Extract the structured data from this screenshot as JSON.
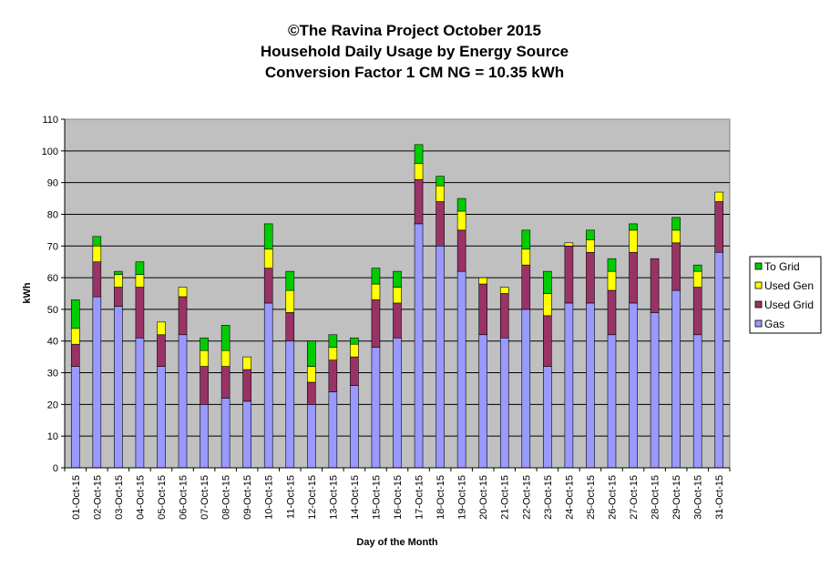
{
  "chart_data": {
    "type": "bar",
    "stacked": true,
    "title_lines": [
      "©The Ravina Project October 2015",
      "Household Daily Usage by Energy Source",
      "Conversion Factor 1 CM NG = 10.35 kWh"
    ],
    "xlabel": "Day of the Month",
    "ylabel": "kWh",
    "ylim": [
      0,
      110
    ],
    "yticks": [
      0,
      10,
      20,
      30,
      40,
      50,
      60,
      70,
      80,
      90,
      100,
      110
    ],
    "grid": "horizontal",
    "legend_position": "right",
    "categories": [
      "01-Oct-15",
      "02-Oct-15",
      "03-Oct-15",
      "04-Oct-15",
      "05-Oct-15",
      "06-Oct-15",
      "07-Oct-15",
      "08-Oct-15",
      "09-Oct-15",
      "10-Oct-15",
      "11-Oct-15",
      "12-Oct-15",
      "13-Oct-15",
      "14-Oct-15",
      "15-Oct-15",
      "16-Oct-15",
      "17-Oct-15",
      "18-Oct-15",
      "19-Oct-15",
      "20-Oct-15",
      "21-Oct-15",
      "22-Oct-15",
      "23-Oct-15",
      "24-Oct-15",
      "25-Oct-15",
      "26-Oct-15",
      "27-Oct-15",
      "28-Oct-15",
      "29-Oct-15",
      "30-Oct-15",
      "31-Oct-15"
    ],
    "series": [
      {
        "name": "Gas",
        "color": "#9999ff",
        "values": [
          32,
          54,
          51,
          41,
          32,
          42,
          20,
          22,
          21,
          52,
          40,
          20,
          24,
          26,
          38,
          41,
          77,
          70,
          62,
          42,
          41,
          50,
          32,
          52,
          52,
          42,
          52,
          49,
          56,
          42,
          68
        ]
      },
      {
        "name": "Used Grid",
        "color": "#993366",
        "values": [
          7,
          11,
          6,
          16,
          10,
          12,
          12,
          10,
          10,
          11,
          9,
          7,
          10,
          9,
          15,
          11,
          14,
          14,
          13,
          16,
          14,
          14,
          16,
          18,
          16,
          14,
          16,
          17,
          15,
          15,
          16
        ]
      },
      {
        "name": "Used Gen",
        "color": "#ffff00",
        "values": [
          5,
          5,
          4,
          4,
          4,
          3,
          5,
          5,
          4,
          6,
          7,
          5,
          4,
          4,
          5,
          5,
          5,
          5,
          6,
          2,
          2,
          5,
          7,
          1,
          4,
          6,
          7,
          0,
          4,
          5,
          3
        ]
      },
      {
        "name": "To Grid",
        "color": "#00cc00",
        "values": [
          9,
          3,
          1,
          4,
          0,
          0,
          4,
          8,
          0,
          8,
          6,
          8,
          4,
          2,
          5,
          5,
          6,
          3,
          4,
          0,
          0,
          6,
          7,
          0,
          3,
          4,
          2,
          0,
          4,
          2,
          0
        ]
      }
    ]
  }
}
